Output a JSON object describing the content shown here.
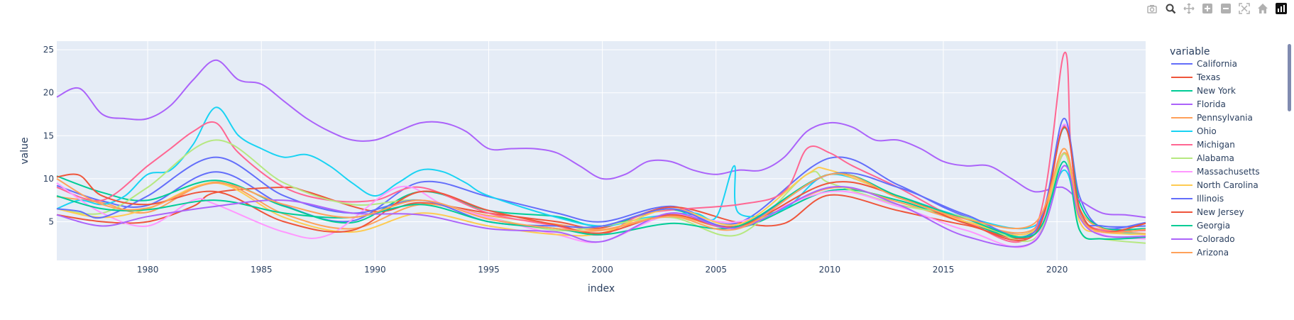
{
  "toolbar": {
    "buttons": [
      {
        "name": "camera-icon"
      },
      {
        "name": "zoom-icon",
        "active": true
      },
      {
        "name": "pan-icon"
      },
      {
        "name": "zoom-in-icon"
      },
      {
        "name": "zoom-out-icon"
      },
      {
        "name": "autoscale-icon"
      },
      {
        "name": "home-icon"
      },
      {
        "name": "plotly-logo-icon"
      }
    ]
  },
  "colors": {
    "plot_bg": "#e5ecf6",
    "grid": "#ffffff",
    "axis_text": "#2a3f5f",
    "palette": [
      "#636efa",
      "#ef553b",
      "#00cc96",
      "#ab63fa",
      "#ffa15a",
      "#19d3f3",
      "#ff6692",
      "#b6e880",
      "#ff97ff",
      "#fecb52"
    ]
  },
  "chart_data": {
    "type": "line",
    "xlabel": "index",
    "ylabel": "value",
    "xlim": [
      1976,
      2023.9
    ],
    "ylim": [
      0.5,
      26
    ],
    "xticks": [
      1980,
      1985,
      1990,
      1995,
      2000,
      2005,
      2010,
      2015,
      2020
    ],
    "yticks": [
      5,
      10,
      15,
      20,
      25
    ],
    "grid": true,
    "legend": {
      "title": "variable",
      "placement": "right",
      "visible_entries": [
        "California",
        "Texas",
        "New York",
        "Florida",
        "Pennsylvania",
        "Ohio",
        "Michigan",
        "Alabama",
        "Massachusetts",
        "North Carolina",
        "Illinois",
        "New Jersey",
        "Georgia",
        "Colorado",
        "Arizona"
      ]
    },
    "series": [
      {
        "name": "California",
        "x": [
          1976,
          1978,
          1980,
          1983,
          1986,
          1989,
          1992,
          1995,
          1998,
          2000,
          2003,
          2006,
          2010,
          2013,
          2016,
          2019,
          2020.3,
          2021,
          2022,
          2023.9
        ],
        "values": [
          9.2,
          7.4,
          6.9,
          10.8,
          6.9,
          5.1,
          9.6,
          7.9,
          6.0,
          5.0,
          6.8,
          4.9,
          12.4,
          9.3,
          5.6,
          4.1,
          16.2,
          7.9,
          4.3,
          4.9
        ]
      },
      {
        "name": "Texas",
        "x": [
          1976,
          1978,
          1980,
          1982,
          1983,
          1986,
          1987,
          1990,
          1992,
          1995,
          1998,
          2000,
          2003,
          2006,
          2008,
          2010,
          2013,
          2016,
          2019,
          2020.3,
          2021,
          2022,
          2023.9
        ],
        "values": [
          5.8,
          5.0,
          5.0,
          6.8,
          8.4,
          9.0,
          8.5,
          6.2,
          7.2,
          6.0,
          5.0,
          4.3,
          6.7,
          4.9,
          4.8,
          8.1,
          6.3,
          4.6,
          3.5,
          12.9,
          5.7,
          4.0,
          4.0
        ]
      },
      {
        "name": "New York",
        "x": [
          1976,
          1978,
          1980,
          1983,
          1986,
          1989,
          1992,
          1995,
          1998,
          2000,
          2003,
          2006,
          2010,
          2013,
          2016,
          2019,
          2020.3,
          2021,
          2022,
          2023.9
        ],
        "values": [
          10.3,
          8.4,
          7.5,
          9.8,
          6.8,
          4.9,
          8.5,
          6.3,
          5.6,
          4.5,
          6.4,
          4.3,
          8.6,
          7.5,
          4.9,
          3.9,
          15.9,
          7.2,
          4.3,
          4.2
        ]
      },
      {
        "name": "Florida",
        "x": [
          1976,
          1977,
          1978,
          1979,
          1980,
          1981,
          1982,
          1983,
          1984,
          1985,
          1986,
          1987,
          1988,
          1989,
          1990,
          1991,
          1992,
          1993,
          1994,
          1995,
          1996,
          1997,
          1998,
          1999,
          2000,
          2001,
          2002,
          2003,
          2004,
          2005,
          2006,
          2007,
          2008,
          2009,
          2010,
          2011,
          2012,
          2013,
          2014,
          2015,
          2016,
          2017,
          2018,
          2019,
          2020,
          2020.4,
          2021,
          2022,
          2023,
          2023.9
        ],
        "values": [
          19.5,
          20.5,
          17.5,
          17.0,
          17.0,
          18.5,
          21.5,
          23.8,
          21.5,
          21.0,
          19.0,
          17.0,
          15.5,
          14.5,
          14.5,
          15.5,
          16.5,
          16.5,
          15.5,
          13.5,
          13.5,
          13.5,
          13.0,
          11.5,
          10.0,
          10.5,
          12.0,
          12.0,
          11.0,
          10.5,
          11.0,
          11.0,
          12.5,
          15.5,
          16.5,
          16.0,
          14.5,
          14.5,
          13.5,
          12.0,
          11.5,
          11.5,
          10.0,
          8.5,
          9.0,
          8.8,
          7.5,
          6.0,
          5.8,
          5.5
        ]
      },
      {
        "name": "Pennsylvania",
        "x": [
          1976,
          1978,
          1980,
          1983,
          1986,
          1989,
          1992,
          1995,
          1998,
          2000,
          2003,
          2006,
          2010,
          2013,
          2016,
          2019,
          2020.3,
          2021,
          2022,
          2023.9
        ],
        "values": [
          7.9,
          7.2,
          6.1,
          9.6,
          5.9,
          4.2,
          7.0,
          5.7,
          4.7,
          4.1,
          5.7,
          4.4,
          8.9,
          7.3,
          5.0,
          4.2,
          13.0,
          6.5,
          4.2,
          3.6
        ]
      },
      {
        "name": "Ohio",
        "x": [
          1976,
          1977,
          1978,
          1979,
          1980,
          1981,
          1982,
          1983,
          1984,
          1985,
          1986,
          1987,
          1988,
          1989,
          1990,
          1991,
          1992,
          1993,
          1994,
          1995,
          1998,
          2000,
          2002,
          2004,
          2005,
          2005.8,
          2006,
          2008,
          2010,
          2013,
          2016,
          2019,
          2020.3,
          2021,
          2022,
          2023.9
        ],
        "values": [
          6.5,
          7.5,
          7.0,
          8.0,
          10.5,
          11.0,
          14.0,
          18.3,
          15.0,
          13.5,
          12.5,
          12.8,
          11.5,
          9.5,
          8.0,
          9.5,
          11.0,
          10.8,
          9.5,
          8.0,
          5.5,
          4.5,
          5.5,
          6.0,
          5.5,
          11.5,
          6.0,
          6.5,
          10.5,
          8.0,
          5.5,
          4.5,
          11.0,
          5.5,
          4.0,
          3.5
        ]
      },
      {
        "name": "Michigan",
        "x": [
          1976,
          1978,
          1980,
          1981,
          1982,
          1983,
          1984,
          1986,
          1988,
          1990,
          1992,
          1995,
          1998,
          2000,
          2002,
          2006,
          2008,
          2009,
          2010,
          2011,
          2013,
          2016,
          2019,
          2020.3,
          2020.6,
          2021,
          2022,
          2023.9
        ],
        "values": [
          9.0,
          7.5,
          11.5,
          13.5,
          15.5,
          16.5,
          13.0,
          9.0,
          7.5,
          7.5,
          9.0,
          6.0,
          4.5,
          3.5,
          6.0,
          7.0,
          8.5,
          13.5,
          13.0,
          11.5,
          9.0,
          5.0,
          4.0,
          24.5,
          14.0,
          6.0,
          4.0,
          4.0
        ]
      },
      {
        "name": "Alabama",
        "x": [
          1976,
          1978,
          1980,
          1983,
          1986,
          1989,
          1992,
          1995,
          1998,
          2000,
          2003,
          2006,
          2009,
          2010,
          2013,
          2016,
          2019,
          2020.3,
          2021,
          2022,
          2023.9
        ],
        "values": [
          6.5,
          6.0,
          9.0,
          14.5,
          9.5,
          7.0,
          7.5,
          5.5,
          4.0,
          4.5,
          5.5,
          3.5,
          10.5,
          9.5,
          7.0,
          5.5,
          3.0,
          12.9,
          4.0,
          3.0,
          2.5
        ]
      },
      {
        "name": "Massachusetts",
        "x": [
          1976,
          1978,
          1980,
          1982,
          1983,
          1986,
          1988,
          1991,
          1993,
          1995,
          1998,
          2000,
          2003,
          2006,
          2010,
          2013,
          2016,
          2019,
          2020.3,
          2021,
          2022,
          2023.9
        ],
        "values": [
          9.5,
          6.0,
          4.5,
          7.5,
          7.0,
          3.8,
          3.5,
          9.0,
          7.0,
          5.5,
          3.5,
          2.7,
          5.8,
          5.0,
          8.5,
          6.8,
          4.0,
          2.8,
          16.3,
          6.0,
          3.5,
          3.0
        ]
      },
      {
        "name": "North Carolina",
        "x": [
          1976,
          1978,
          1980,
          1983,
          1986,
          1989,
          1992,
          1995,
          1998,
          2000,
          2003,
          2006,
          2009,
          2010,
          2013,
          2016,
          2019,
          2020.3,
          2021,
          2022,
          2023.9
        ],
        "values": [
          6.5,
          5.5,
          6.5,
          9.5,
          5.5,
          3.8,
          6.0,
          4.5,
          3.5,
          3.7,
          6.5,
          4.7,
          10.5,
          11.0,
          8.0,
          5.0,
          4.0,
          13.5,
          5.0,
          3.8,
          3.5
        ]
      },
      {
        "name": "Illinois",
        "x": [
          1976,
          1977,
          1978,
          1980,
          1983,
          1986,
          1989,
          1992,
          1995,
          1998,
          2000,
          2003,
          2006,
          2010,
          2013,
          2016,
          2019,
          2020.3,
          2021,
          2022,
          2023.9
        ],
        "values": [
          6.5,
          6.2,
          5.5,
          8.0,
          12.5,
          8.0,
          6.0,
          7.5,
          5.0,
          4.5,
          4.5,
          6.5,
          4.5,
          10.5,
          9.0,
          5.8,
          3.8,
          17.0,
          6.0,
          4.5,
          4.5
        ]
      },
      {
        "name": "New Jersey",
        "x": [
          1976,
          1977,
          1978,
          1980,
          1983,
          1986,
          1989,
          1992,
          1995,
          1998,
          2000,
          2003,
          2006,
          2010,
          2013,
          2016,
          2019,
          2020.3,
          2021,
          2022,
          2023.9
        ],
        "values": [
          10.2,
          10.4,
          8.0,
          7.0,
          8.5,
          5.0,
          4.0,
          8.5,
          6.3,
          4.6,
          3.7,
          5.8,
          4.5,
          9.5,
          8.0,
          4.8,
          3.5,
          16.0,
          6.5,
          3.8,
          4.8
        ]
      },
      {
        "name": "Georgia",
        "x": [
          1976,
          1978,
          1980,
          1983,
          1986,
          1989,
          1992,
          1995,
          1998,
          2000,
          2003,
          2006,
          2010,
          2013,
          2016,
          2019,
          2020.3,
          2021,
          2022,
          2023.9
        ],
        "values": [
          8.0,
          6.5,
          6.4,
          7.5,
          6.0,
          5.5,
          7.0,
          5.0,
          4.2,
          3.5,
          4.8,
          4.5,
          10.5,
          8.0,
          5.3,
          3.5,
          12.0,
          4.0,
          3.0,
          3.2
        ]
      },
      {
        "name": "Colorado",
        "x": [
          1976,
          1978,
          1980,
          1983,
          1986,
          1989,
          1992,
          1995,
          1998,
          2000,
          2003,
          2006,
          2010,
          2013,
          2016,
          2019,
          2020.3,
          2021,
          2022,
          2023.9
        ],
        "values": [
          5.8,
          4.5,
          5.6,
          6.8,
          7.5,
          6.0,
          5.8,
          4.2,
          3.8,
          2.7,
          6.0,
          4.3,
          9.0,
          7.0,
          3.3,
          2.7,
          11.5,
          5.5,
          3.4,
          3.3
        ]
      },
      {
        "name": "Arizona",
        "x": [
          1976,
          1978,
          1980,
          1983,
          1986,
          1989,
          1992,
          1995,
          1998,
          2000,
          2003,
          2006,
          2010,
          2013,
          2016,
          2019,
          2020.3,
          2021,
          2022,
          2023.9
        ],
        "values": [
          10.0,
          7.0,
          6.6,
          9.5,
          7.0,
          5.5,
          7.5,
          5.3,
          4.2,
          4.0,
          5.6,
          4.2,
          10.5,
          7.8,
          5.3,
          4.8,
          13.5,
          5.8,
          3.8,
          4.1
        ]
      }
    ]
  }
}
